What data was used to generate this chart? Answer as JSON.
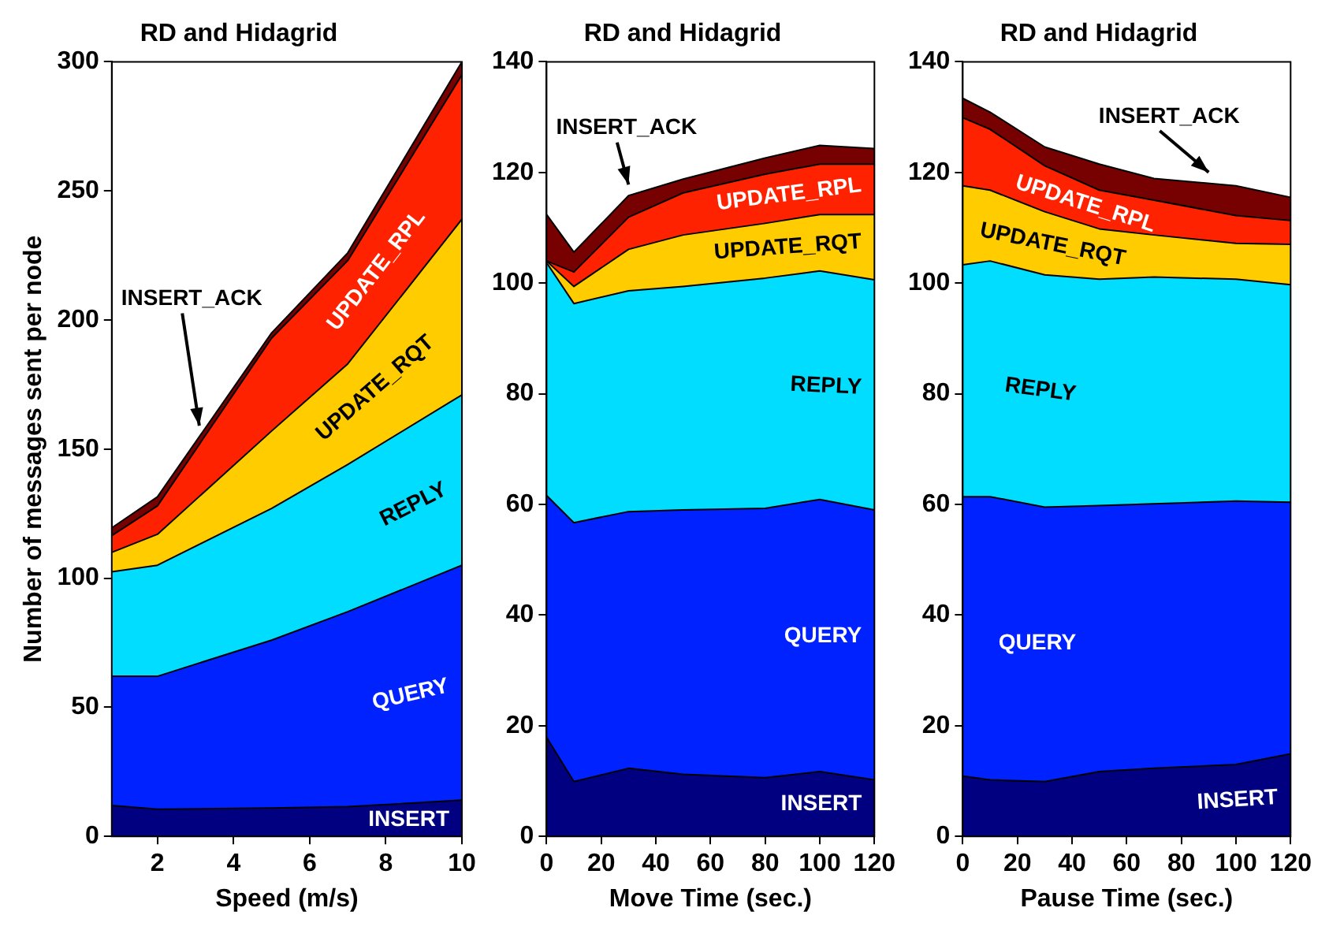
{
  "chart_data": [
    {
      "type": "area",
      "stacked": true,
      "title": "RD and Hidagrid",
      "xlabel": "Speed (m/s)",
      "ylabel": "Number of messages sent per node",
      "legend": false,
      "x": [
        0.8,
        2,
        5,
        7,
        10
      ],
      "xlim": [
        0.8,
        10
      ],
      "xticks": [
        2,
        4,
        6,
        8,
        10
      ],
      "ylim": [
        0,
        300
      ],
      "yticks": [
        0,
        50,
        100,
        150,
        200,
        250,
        300
      ],
      "series": [
        {
          "name": "INSERT",
          "color": "#000080",
          "values": [
            12,
            10.5,
            11,
            11.5,
            14
          ]
        },
        {
          "name": "QUERY",
          "color": "#0022ff",
          "values": [
            50,
            51.5,
            65,
            75.5,
            91
          ]
        },
        {
          "name": "REPLY",
          "color": "#00ddff",
          "values": [
            40.5,
            43,
            51,
            57,
            66
          ]
        },
        {
          "name": "UPDATE_RQT",
          "color": "#ffcc00",
          "values": [
            7.5,
            12,
            30,
            39,
            68
          ]
        },
        {
          "name": "UPDATE_RPL",
          "color": "#ff2200",
          "values": [
            6.5,
            11,
            36,
            40,
            56
          ]
        },
        {
          "name": "INSERT_ACK",
          "color": "#770000",
          "values": [
            3,
            3.5,
            2,
            3,
            5
          ]
        }
      ]
    },
    {
      "type": "area",
      "stacked": true,
      "title": "RD and Hidagrid",
      "xlabel": "Move Time (sec.)",
      "legend": false,
      "x": [
        0,
        10,
        30,
        50,
        80,
        100,
        120
      ],
      "xlim": [
        0,
        120
      ],
      "xticks": [
        0,
        20,
        40,
        60,
        80,
        100,
        120
      ],
      "ylim": [
        0,
        140
      ],
      "yticks": [
        0,
        20,
        40,
        60,
        80,
        100,
        120,
        140
      ],
      "series": [
        {
          "name": "INSERT",
          "color": "#000080",
          "values": [
            17.9,
            9.9,
            12.3,
            11.2,
            10.6,
            11.7,
            10.2
          ]
        },
        {
          "name": "QUERY",
          "color": "#0022ff",
          "values": [
            43.7,
            46.8,
            46.4,
            47.8,
            48.7,
            49.2,
            48.8
          ]
        },
        {
          "name": "REPLY",
          "color": "#00ddff",
          "values": [
            42.1,
            39.6,
            39.9,
            40.4,
            41.6,
            41.3,
            41.6
          ]
        },
        {
          "name": "UPDATE_RQT",
          "color": "#ffcc00",
          "values": [
            0.3,
            3.1,
            7.5,
            9.3,
            9.9,
            10.2,
            11.8
          ]
        },
        {
          "name": "UPDATE_RPL",
          "color": "#ff2200",
          "values": [
            0,
            2.6,
            5.8,
            7.6,
            8.9,
            9.1,
            9.1
          ]
        },
        {
          "name": "INSERT_ACK",
          "color": "#770000",
          "values": [
            8.4,
            3.6,
            3.9,
            2.5,
            2.9,
            3.4,
            2.8
          ]
        }
      ]
    },
    {
      "type": "area",
      "stacked": true,
      "title": "RD and Hidagrid",
      "xlabel": "Pause Time (sec.)",
      "legend": false,
      "x": [
        0,
        10,
        30,
        50,
        70,
        100,
        120
      ],
      "xlim": [
        0,
        120
      ],
      "xticks": [
        0,
        20,
        40,
        60,
        80,
        100,
        120
      ],
      "ylim": [
        0,
        140
      ],
      "yticks": [
        0,
        20,
        40,
        60,
        80,
        100,
        120,
        140
      ],
      "series": [
        {
          "name": "INSERT",
          "color": "#000080",
          "values": [
            10.9,
            10.2,
            9.9,
            11.7,
            12.3,
            13,
            14.9
          ]
        },
        {
          "name": "QUERY",
          "color": "#0022ff",
          "values": [
            50.5,
            51.2,
            49.6,
            48.1,
            47.8,
            47.6,
            45.5
          ]
        },
        {
          "name": "REPLY",
          "color": "#00ddff",
          "values": [
            41.9,
            42.6,
            42,
            40.9,
            41,
            40.1,
            39.3
          ]
        },
        {
          "name": "UPDATE_RQT",
          "color": "#ffcc00",
          "values": [
            14.3,
            12.8,
            11.4,
            9.1,
            7.6,
            6.5,
            7.3
          ]
        },
        {
          "name": "UPDATE_RPL",
          "color": "#ff2200",
          "values": [
            12.3,
            11,
            8.3,
            7,
            6.3,
            5,
            4.3
          ]
        },
        {
          "name": "INSERT_ACK",
          "color": "#770000",
          "values": [
            3.5,
            3.1,
            3.4,
            4.7,
            3.9,
            5.4,
            4.2
          ]
        }
      ]
    }
  ]
}
